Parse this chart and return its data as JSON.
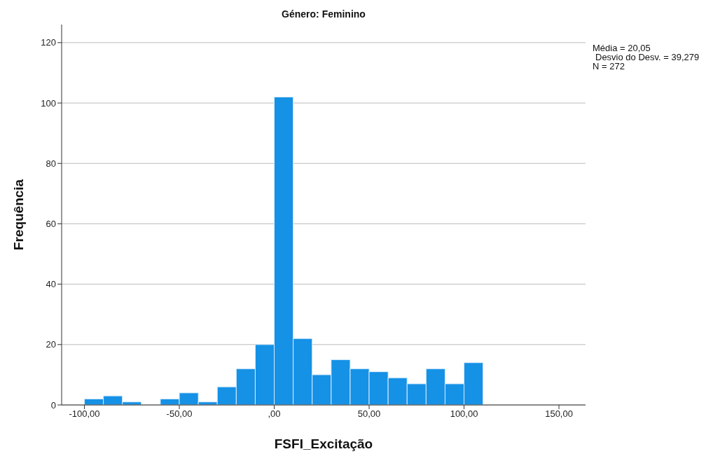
{
  "chart_data": {
    "type": "histogram",
    "title": "Género: Feminino",
    "xlabel": "FSFI_Excitação",
    "ylabel": "Frequência",
    "bins": [
      -100,
      -90,
      -80,
      -70,
      -60,
      -50,
      -40,
      -30,
      -20,
      -10,
      0,
      10,
      20,
      30,
      40,
      50,
      60,
      70,
      80,
      90,
      100,
      110
    ],
    "values": [
      2,
      3,
      1,
      0,
      2,
      4,
      1,
      6,
      12,
      20,
      102,
      22,
      10,
      15,
      12,
      11,
      9,
      7,
      12,
      7,
      14
    ],
    "color": "#1591e6",
    "xlim": [
      -112,
      164
    ],
    "xticks": [
      {
        "value": -100,
        "label": "-100,00"
      },
      {
        "value": -50,
        "label": "-50,00"
      },
      {
        "value": 0,
        "label": ",00"
      },
      {
        "value": 50,
        "label": "50,00"
      },
      {
        "value": 100,
        "label": "100,00"
      },
      {
        "value": 150,
        "label": "150,00"
      }
    ],
    "ylim": [
      0,
      126
    ],
    "yticks": [
      0,
      20,
      40,
      60,
      80,
      100,
      120
    ],
    "grid": "y",
    "annotations": [
      "Média = 20,05",
      "Desvio do Desv. = 39,279",
      "N = 272"
    ]
  }
}
